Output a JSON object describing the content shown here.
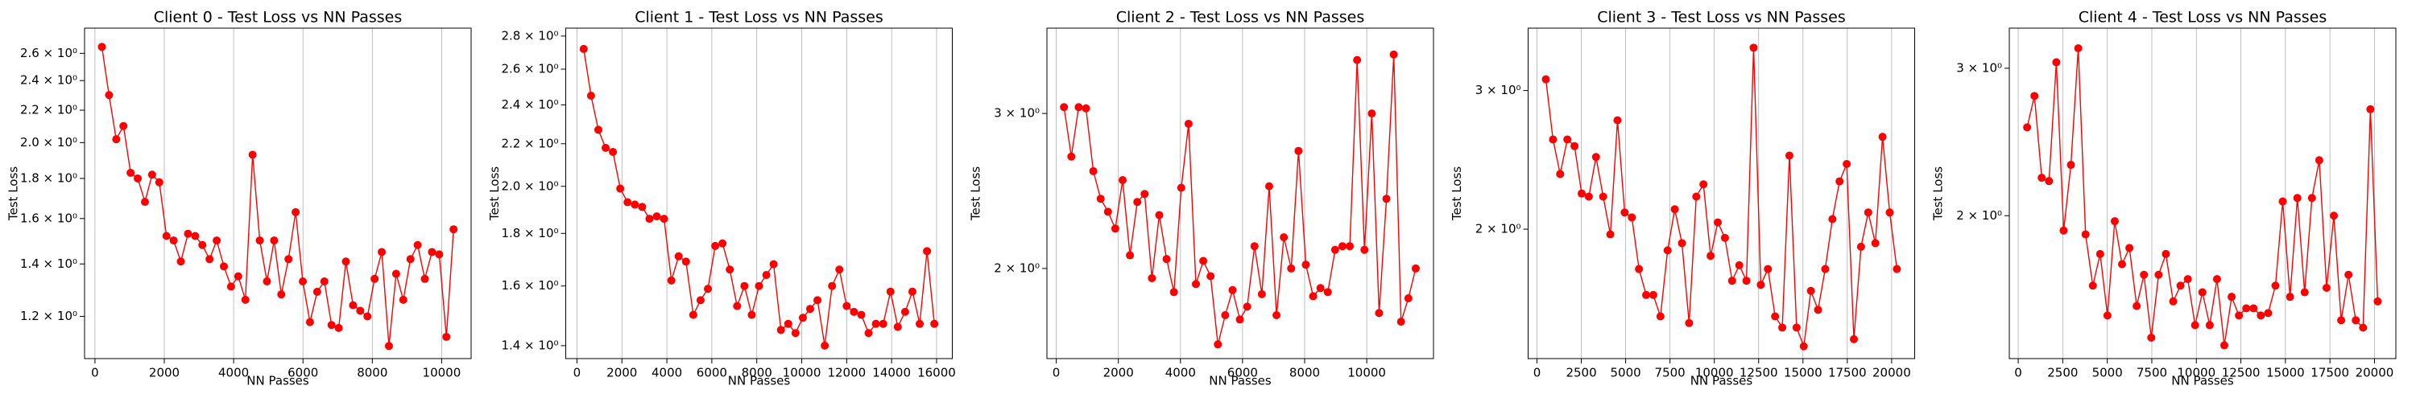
{
  "chart_data": [
    {
      "type": "line",
      "title": "Client 0 - Test Loss vs NN Passes",
      "xlabel": "NN Passes",
      "ylabel": "Test Loss",
      "log_y": true,
      "grid": "x",
      "color": "#ff0000",
      "x": [
        200,
        407,
        614,
        821,
        1028,
        1235,
        1442,
        1649,
        1856,
        2063,
        2270,
        2477,
        2684,
        2891,
        3098,
        3305,
        3512,
        3719,
        3926,
        4133,
        4340,
        4547,
        4754,
        4961,
        5168,
        5375,
        5582,
        5789,
        5996,
        6203,
        6410,
        6617,
        6824,
        7031,
        7238,
        7445,
        7652,
        7859,
        8066,
        8273,
        8480,
        8687,
        8894,
        9101,
        9308,
        9515,
        9722,
        9929,
        10136,
        10343
      ],
      "values": [
        2.65,
        2.3,
        2.02,
        2.1,
        1.83,
        1.8,
        1.68,
        1.82,
        1.78,
        1.52,
        1.5,
        1.41,
        1.53,
        1.52,
        1.48,
        1.42,
        1.5,
        1.39,
        1.31,
        1.35,
        1.26,
        1.93,
        1.5,
        1.33,
        1.5,
        1.28,
        1.42,
        1.63,
        1.33,
        1.18,
        1.29,
        1.33,
        1.17,
        1.16,
        1.41,
        1.24,
        1.22,
        1.2,
        1.34,
        1.45,
        1.1,
        1.36,
        1.26,
        1.42,
        1.48,
        1.34,
        1.45,
        1.44,
        1.13,
        1.55
      ],
      "xlim": [
        -300,
        10850
      ],
      "xticks": [
        0,
        2000,
        4000,
        6000,
        8000,
        10000
      ],
      "ylim": [
        1.06,
        2.8
      ],
      "yticks": [
        {
          "value": 1.2,
          "label": "1.2 × 10⁰"
        },
        {
          "value": 1.4,
          "label": "1.4 × 10⁰"
        },
        {
          "value": 1.6,
          "label": "1.6 × 10⁰"
        },
        {
          "value": 1.8,
          "label": "1.8 × 10⁰"
        },
        {
          "value": 2.0,
          "label": "2.0 × 10⁰"
        },
        {
          "value": 2.2,
          "label": "2.2 × 10⁰"
        },
        {
          "value": 2.4,
          "label": "2.4 × 10⁰"
        },
        {
          "value": 2.6,
          "label": "2.6 × 10⁰"
        }
      ]
    },
    {
      "type": "line",
      "title": "Client 1 - Test Loss vs NN Passes",
      "xlabel": "NN Passes",
      "ylabel": "Test Loss",
      "log_y": true,
      "grid": "x",
      "color": "#ff0000",
      "x": [
        300,
        625,
        950,
        1275,
        1600,
        1925,
        2250,
        2575,
        2900,
        3225,
        3550,
        3875,
        4200,
        4525,
        4850,
        5175,
        5500,
        5825,
        6150,
        6475,
        6800,
        7125,
        7450,
        7775,
        8100,
        8425,
        8750,
        9075,
        9400,
        9725,
        10050,
        10375,
        10700,
        11025,
        11350,
        11675,
        12000,
        12325,
        12650,
        12975,
        13300,
        13625,
        13950,
        14275,
        14600,
        14925,
        15250,
        15575,
        15900
      ],
      "values": [
        2.72,
        2.45,
        2.27,
        2.18,
        2.16,
        1.99,
        1.93,
        1.92,
        1.91,
        1.86,
        1.87,
        1.86,
        1.62,
        1.71,
        1.69,
        1.5,
        1.55,
        1.59,
        1.75,
        1.76,
        1.66,
        1.53,
        1.6,
        1.5,
        1.6,
        1.64,
        1.68,
        1.45,
        1.47,
        1.44,
        1.49,
        1.52,
        1.55,
        1.4,
        1.6,
        1.66,
        1.53,
        1.51,
        1.5,
        1.44,
        1.47,
        1.47,
        1.58,
        1.46,
        1.51,
        1.58,
        1.47,
        1.73,
        1.47
      ],
      "xlim": [
        -500,
        16700
      ],
      "xticks": [
        0,
        2000,
        4000,
        6000,
        8000,
        10000,
        12000,
        14000,
        16000
      ],
      "ylim": [
        1.36,
        2.85
      ],
      "yticks": [
        {
          "value": 1.4,
          "label": "1.4 × 10⁰"
        },
        {
          "value": 1.6,
          "label": "1.6 × 10⁰"
        },
        {
          "value": 1.8,
          "label": "1.8 × 10⁰"
        },
        {
          "value": 2.0,
          "label": "2.0 × 10⁰"
        },
        {
          "value": 2.2,
          "label": "2.2 × 10⁰"
        },
        {
          "value": 2.4,
          "label": "2.4 × 10⁰"
        },
        {
          "value": 2.6,
          "label": "2.6 × 10⁰"
        },
        {
          "value": 2.8,
          "label": "2.8 × 10⁰"
        }
      ]
    },
    {
      "type": "line",
      "title": "Client 2 - Test Loss vs NN Passes",
      "xlabel": "NN Passes",
      "ylabel": "Test Loss",
      "log_y": true,
      "grid": "x",
      "color": "#ff0000",
      "x": [
        250,
        486,
        722,
        958,
        1194,
        1430,
        1666,
        1902,
        2138,
        2374,
        2610,
        2846,
        3082,
        3318,
        3554,
        3790,
        4026,
        4262,
        4498,
        4734,
        4970,
        5206,
        5442,
        5678,
        5914,
        6150,
        6386,
        6622,
        6858,
        7094,
        7330,
        7566,
        7802,
        8038,
        8274,
        8510,
        8746,
        8982,
        9218,
        9454,
        9690,
        9926,
        10162,
        10398,
        10634,
        10870,
        11106,
        11342,
        11578
      ],
      "values": [
        3.05,
        2.68,
        3.05,
        3.04,
        2.58,
        2.4,
        2.32,
        2.22,
        2.52,
        2.07,
        2.38,
        2.43,
        1.95,
        2.3,
        2.05,
        1.88,
        2.47,
        2.92,
        1.92,
        2.04,
        1.96,
        1.64,
        1.77,
        1.89,
        1.75,
        1.81,
        2.12,
        1.87,
        2.48,
        1.77,
        2.17,
        2.0,
        2.72,
        2.02,
        1.86,
        1.9,
        1.88,
        2.1,
        2.12,
        2.12,
        3.45,
        2.1,
        3.0,
        1.78,
        2.4,
        3.5,
        1.74,
        1.85,
        2.0
      ],
      "xlim": [
        -300,
        12150
      ],
      "xticks": [
        0,
        2000,
        4000,
        6000,
        8000,
        10000
      ],
      "ylim": [
        1.58,
        3.75
      ],
      "yticks": [
        {
          "value": 2,
          "label": "2 × 10⁰"
        },
        {
          "value": 3,
          "label": "3 × 10⁰"
        }
      ]
    },
    {
      "type": "line",
      "title": "Client 3 - Test Loss vs NN Passes",
      "xlabel": "NN Passes",
      "ylabel": "Test Loss",
      "log_y": true,
      "grid": "x",
      "color": "#ff0000",
      "x": [
        500,
        904,
        1308,
        1712,
        2116,
        2520,
        2924,
        3328,
        3732,
        4136,
        4540,
        4944,
        5348,
        5752,
        6156,
        6560,
        6964,
        7368,
        7772,
        8176,
        8580,
        8984,
        9388,
        9792,
        10196,
        10600,
        11004,
        11408,
        11812,
        12216,
        12620,
        13024,
        13428,
        13832,
        14236,
        14640,
        15044,
        15448,
        15852,
        16256,
        16660,
        17064,
        17468,
        17872,
        18276,
        18680,
        19084,
        19488,
        19892,
        20296
      ],
      "values": [
        3.1,
        2.6,
        2.35,
        2.6,
        2.55,
        2.22,
        2.2,
        2.47,
        2.2,
        1.97,
        2.75,
        2.1,
        2.07,
        1.78,
        1.65,
        1.65,
        1.55,
        1.88,
        2.12,
        1.92,
        1.52,
        2.2,
        2.28,
        1.85,
        2.04,
        1.95,
        1.72,
        1.8,
        1.72,
        3.4,
        1.7,
        1.78,
        1.55,
        1.5,
        2.48,
        1.5,
        1.42,
        1.67,
        1.58,
        1.78,
        2.06,
        2.3,
        2.42,
        1.45,
        1.9,
        2.1,
        1.92,
        2.62,
        2.1,
        1.78
      ],
      "xlim": [
        -500,
        21300
      ],
      "xticks": [
        0,
        2500,
        5000,
        7500,
        10000,
        12500,
        15000,
        17500,
        20000
      ],
      "ylim": [
        1.37,
        3.6
      ],
      "yticks": [
        {
          "value": 2,
          "label": "2 × 10⁰"
        },
        {
          "value": 3,
          "label": "3 × 10⁰"
        }
      ]
    },
    {
      "type": "line",
      "title": "Client 4 - Test Loss vs NN Passes",
      "xlabel": "NN Passes",
      "ylabel": "Test Loss",
      "log_y": true,
      "grid": "x",
      "color": "#ff0000",
      "x": [
        500,
        910,
        1320,
        1730,
        2140,
        2550,
        2960,
        3370,
        3780,
        4190,
        4600,
        5010,
        5420,
        5830,
        6240,
        6650,
        7060,
        7470,
        7880,
        8290,
        8700,
        9110,
        9520,
        9930,
        10340,
        10750,
        11160,
        11570,
        11980,
        12390,
        12800,
        13210,
        13620,
        14030,
        14440,
        14850,
        15260,
        15670,
        16080,
        16490,
        16900,
        17310,
        17720,
        18130,
        18540,
        18950,
        19360,
        19770,
        20180
      ],
      "values": [
        2.55,
        2.78,
        2.22,
        2.2,
        3.05,
        1.92,
        2.3,
        3.17,
        1.9,
        1.65,
        1.8,
        1.52,
        1.97,
        1.75,
        1.83,
        1.56,
        1.7,
        1.43,
        1.7,
        1.8,
        1.58,
        1.65,
        1.68,
        1.48,
        1.62,
        1.48,
        1.68,
        1.4,
        1.6,
        1.52,
        1.55,
        1.55,
        1.52,
        1.53,
        1.65,
        2.08,
        1.6,
        2.1,
        1.62,
        2.1,
        2.33,
        1.64,
        2.0,
        1.5,
        1.7,
        1.5,
        1.47,
        2.68,
        1.58
      ],
      "xlim": [
        -500,
        21200
      ],
      "xticks": [
        0,
        2500,
        5000,
        7500,
        10000,
        12500,
        15000,
        17500,
        20000
      ],
      "ylim": [
        1.35,
        3.35
      ],
      "yticks": [
        {
          "value": 2,
          "label": "2 × 10⁰"
        },
        {
          "value": 3,
          "label": "3 × 10⁰"
        }
      ]
    }
  ]
}
